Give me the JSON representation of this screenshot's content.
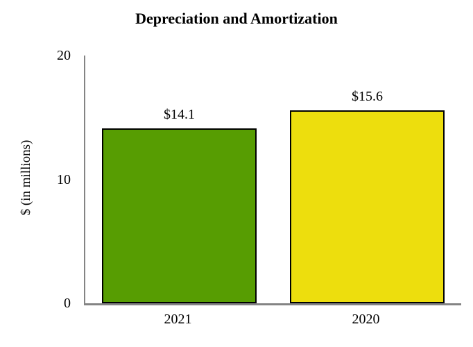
{
  "chart_data": {
    "type": "bar",
    "title": "Depreciation and Amortization",
    "ylabel": "$ (in millions)",
    "xlabel": "",
    "categories": [
      "2021",
      "2020"
    ],
    "values": [
      14.1,
      15.6
    ],
    "value_labels": [
      "$14.1",
      "$15.6"
    ],
    "bar_colors": [
      "#579D02",
      "#EDDE0D"
    ],
    "bar_border_color": "#000000",
    "axis_line_color": "#848484",
    "text_color": "#000000",
    "background_color": "#FFFFFF",
    "ylim": [
      0,
      20
    ],
    "yticks": [
      0,
      10,
      20
    ],
    "grid": false,
    "legend": false,
    "legend_position": "none"
  }
}
